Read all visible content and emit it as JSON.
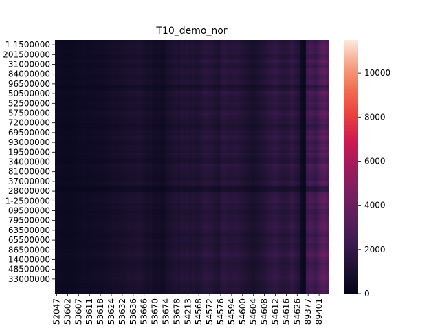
{
  "chart_data": {
    "type": "heatmap",
    "title": "T10_demo_nor",
    "xlabel": "",
    "ylabel": "",
    "colormap": "rocket",
    "colorbar": {
      "range": [
        0,
        11500
      ],
      "ticks": [
        0,
        2000,
        4000,
        6000,
        8000,
        10000
      ]
    },
    "y_tick_labels": [
      "1-1500000",
      "201500000",
      "31000000",
      "84000000",
      "96500000",
      "50500000",
      "52500000",
      "57500000",
      "72000000",
      "69500000",
      "93000000",
      "19500000",
      "34000000",
      "81000000",
      "37000000",
      "28000000",
      "1-2500000",
      "09500000",
      "79500000",
      "63500000",
      "65500000",
      "86500000",
      "14000000",
      "48500000",
      "33000000"
    ],
    "x_tick_labels": [
      "52047",
      "53602",
      "53607",
      "53611",
      "53618",
      "53624",
      "53632",
      "53636",
      "53666",
      "53670",
      "53674",
      "53678",
      "54213",
      "54568",
      "54572",
      "54576",
      "54594",
      "54600",
      "54604",
      "54608",
      "54612",
      "54616",
      "54626",
      "89377",
      "89401"
    ],
    "column_profile": [
      500,
      480,
      420,
      400,
      380,
      400,
      420,
      460,
      480,
      500,
      550,
      520,
      540,
      560,
      600,
      620,
      600,
      650,
      700,
      750,
      800,
      780,
      820,
      850,
      900,
      950,
      1000,
      980,
      1050,
      1100,
      1000,
      900,
      800,
      850,
      700,
      650,
      700,
      600,
      650,
      900,
      1000,
      1100,
      1200,
      1100,
      1300,
      1200,
      1300,
      1150,
      1250,
      1100,
      1200,
      1300,
      1500,
      1500,
      1400,
      1300,
      1200,
      1100,
      1500,
      1600,
      1500,
      1400,
      1450,
      1500,
      1400,
      1300,
      1200,
      1100,
      1000,
      900,
      1000,
      1100,
      1200,
      1300,
      1500,
      1600,
      1700,
      1800,
      1600,
      1500,
      1400,
      1500,
      1700,
      1800,
      1500,
      1300,
      500,
      300,
      2200,
      2500,
      2300,
      2100,
      2600,
      3000,
      3200,
      2800
    ],
    "row_profile": [
      0.9,
      1.0,
      1.1,
      1.05,
      1.1,
      0.9,
      0.95,
      1.2,
      1.0,
      0.9,
      1.1,
      1.15,
      1.0,
      0.95,
      1.1,
      1.05,
      0.7,
      0.85,
      1.2,
      1.1,
      1.0,
      0.95,
      1.1,
      1.0,
      0.9,
      1.15,
      1.2,
      1.05,
      0.95,
      1.0,
      0.8,
      0.9,
      1.1,
      1.0,
      1.2,
      1.05,
      0.9,
      1.0,
      1.1,
      0.95,
      1.15,
      1.0,
      0.85,
      0.9,
      1.2,
      1.1,
      1.05,
      1.0,
      0.95,
      0.9,
      1.1,
      1.0,
      0.6,
      0.65,
      1.05,
      1.1,
      1.15,
      1.2,
      1.0,
      1.1,
      0.95,
      0.9,
      1.05,
      1.0,
      1.1,
      1.15,
      1.2,
      1.1,
      1.0,
      0.9,
      1.05,
      1.1,
      0.95,
      1.0,
      1.1,
      1.2,
      1.3,
      1.1,
      1.0,
      0.9,
      1.0,
      1.05,
      1.1,
      1.15,
      1.2,
      1.1,
      1.0,
      0.95,
      1.0,
      0.9
    ]
  }
}
